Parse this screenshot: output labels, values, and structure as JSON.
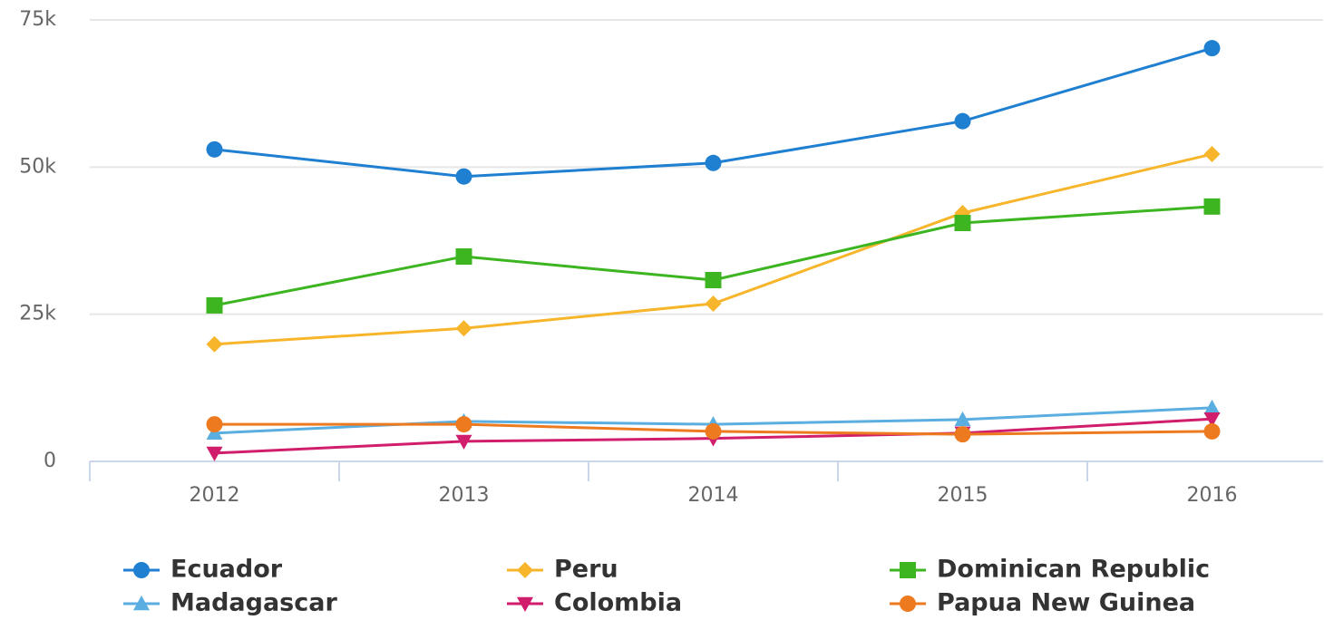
{
  "chart_data": {
    "type": "line",
    "categories": [
      "2012",
      "2013",
      "2014",
      "2015",
      "2016"
    ],
    "series": [
      {
        "name": "Ecuador",
        "color": "#1f7fd0",
        "marker": "circle",
        "values": [
          53000,
          48400,
          50700,
          57800,
          70200
        ]
      },
      {
        "name": "Peru",
        "color": "#f7b52b",
        "marker": "diamond",
        "values": [
          19900,
          22600,
          26800,
          42200,
          52200
        ]
      },
      {
        "name": "Dominican Republic",
        "color": "#3cb521",
        "marker": "square",
        "values": [
          26500,
          34800,
          30800,
          40500,
          43300
        ]
      },
      {
        "name": "Madagascar",
        "color": "#5aaee0",
        "marker": "triangle",
        "values": [
          4800,
          6800,
          6300,
          7100,
          9100
        ]
      },
      {
        "name": "Colombia",
        "color": "#d01d6c",
        "marker": "triangle-down",
        "values": [
          1400,
          3400,
          3900,
          4800,
          7200
        ]
      },
      {
        "name": "Papua New Guinea",
        "color": "#ee7a1f",
        "marker": "circle",
        "values": [
          6300,
          6300,
          5100,
          4600,
          5100
        ]
      }
    ],
    "ylim": [
      0,
      75000
    ],
    "yticks": [
      0,
      {
        "value": 25000,
        "label": "25k"
      },
      {
        "value": 50000,
        "label": "50k"
      },
      {
        "value": 75000,
        "label": "75k"
      }
    ],
    "grid": true
  }
}
